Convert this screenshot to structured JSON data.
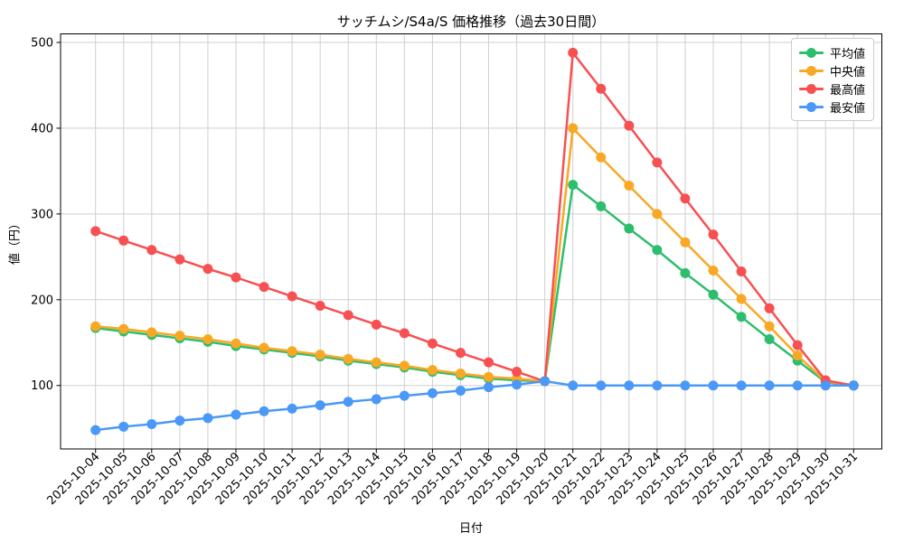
{
  "figure": {
    "title": "サッチムシ/S4a/S 価格推移（過去30日間）",
    "xlabel": "日付",
    "ylabel": "値（円）"
  },
  "chart_data": {
    "type": "line",
    "title": "サッチムシ/S4a/S 価格推移（過去30日間）",
    "xlabel": "日付",
    "ylabel": "値（円）",
    "grid": true,
    "legend_position": "upper right",
    "ylim": [
      26,
      510
    ],
    "yticks": [
      100,
      200,
      300,
      400,
      500
    ],
    "x": [
      "2025-10-04",
      "2025-10-05",
      "2025-10-06",
      "2025-10-07",
      "2025-10-08",
      "2025-10-09",
      "2025-10-10",
      "2025-10-11",
      "2025-10-12",
      "2025-10-13",
      "2025-10-14",
      "2025-10-15",
      "2025-10-16",
      "2025-10-17",
      "2025-10-18",
      "2025-10-19",
      "2025-10-20",
      "2025-10-21",
      "2025-10-22",
      "2025-10-23",
      "2025-10-24",
      "2025-10-25",
      "2025-10-26",
      "2025-10-27",
      "2025-10-28",
      "2025-10-29",
      "2025-10-30",
      "2025-10-31"
    ],
    "series": [
      {
        "name": "平均値",
        "color": "#2dbe6d",
        "values": [
          167,
          163,
          159,
          155,
          151,
          146,
          142,
          138,
          134,
          129,
          125,
          121,
          116,
          112,
          108,
          106,
          105,
          334,
          309,
          283,
          258,
          231,
          206,
          180,
          154,
          129,
          104,
          100
        ]
      },
      {
        "name": "中央値",
        "color": "#f9a825",
        "values": [
          169,
          166,
          162,
          158,
          154,
          149,
          144,
          140,
          136,
          131,
          127,
          123,
          118,
          114,
          110,
          108,
          105,
          400,
          366,
          333,
          300,
          267,
          234,
          201,
          169,
          135,
          105,
          100
        ]
      },
      {
        "name": "最高値",
        "color": "#f75052",
        "values": [
          280,
          269,
          258,
          247,
          236,
          226,
          215,
          204,
          193,
          182,
          171,
          161,
          149,
          138,
          127,
          116,
          105,
          488,
          446,
          403,
          360,
          318,
          276,
          233,
          190,
          147,
          106,
          100
        ]
      },
      {
        "name": "最安値",
        "color": "#4a98f7",
        "values": [
          48,
          52,
          55,
          59,
          62,
          66,
          70,
          73,
          77,
          81,
          84,
          88,
          91,
          94,
          98,
          101,
          105,
          100,
          100,
          100,
          100,
          100,
          100,
          100,
          100,
          100,
          100,
          100
        ]
      }
    ]
  }
}
